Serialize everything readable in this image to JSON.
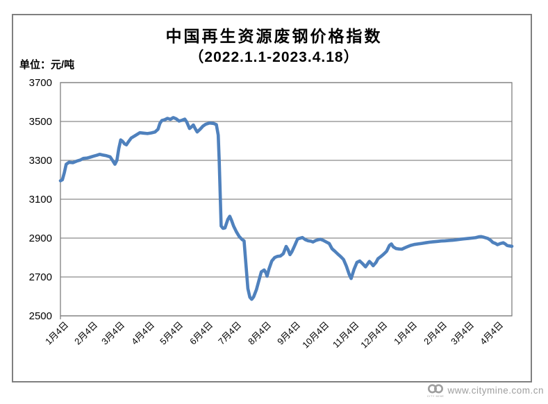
{
  "title": "中国再生资源废钢价格指数",
  "subtitle": "（2022.1.1-2023.4.18）",
  "unit_label": "单位：元/吨",
  "watermark": {
    "url_text": "www.citymine.com.cn",
    "logo_text": "CITY MINE"
  },
  "colors": {
    "line": "#4F81BD",
    "grid": "#8a8a8a",
    "plot_border": "#7f7f7f",
    "frame_border": "#7f7f7f",
    "text": "#000000",
    "watermark": "#9e9e9e"
  },
  "chart_data": {
    "type": "line",
    "series_name": "中国再生资源废钢价格指数",
    "ylabel": "元/吨",
    "ylim": [
      2500,
      3700
    ],
    "y_ticks": [
      3700,
      3500,
      3300,
      3100,
      2900,
      2700,
      2500
    ],
    "grid": true,
    "legend": "none",
    "x_unit": "days since 2022-01-01",
    "x_span_days": 472,
    "x_ticks": [
      {
        "label": "1月4日",
        "day": 3
      },
      {
        "label": "2月4日",
        "day": 34
      },
      {
        "label": "3月4日",
        "day": 62
      },
      {
        "label": "4月4日",
        "day": 93
      },
      {
        "label": "5月4日",
        "day": 123
      },
      {
        "label": "6月4日",
        "day": 154
      },
      {
        "label": "7月4日",
        "day": 184
      },
      {
        "label": "8月4日",
        "day": 215
      },
      {
        "label": "9月4日",
        "day": 246
      },
      {
        "label": "10月4日",
        "day": 276
      },
      {
        "label": "11月4日",
        "day": 307
      },
      {
        "label": "12月4日",
        "day": 337
      },
      {
        "label": "1月4日",
        "day": 368
      },
      {
        "label": "2月4日",
        "day": 399
      },
      {
        "label": "3月4日",
        "day": 427
      },
      {
        "label": "4月4日",
        "day": 458
      }
    ],
    "points": [
      [
        0,
        3195
      ],
      [
        2,
        3200
      ],
      [
        4,
        3235
      ],
      [
        6,
        3280
      ],
      [
        9,
        3290
      ],
      [
        13,
        3288
      ],
      [
        17,
        3296
      ],
      [
        21,
        3302
      ],
      [
        24,
        3310
      ],
      [
        28,
        3312
      ],
      [
        31,
        3316
      ],
      [
        35,
        3322
      ],
      [
        38,
        3326
      ],
      [
        41,
        3331
      ],
      [
        44,
        3328
      ],
      [
        48,
        3324
      ],
      [
        52,
        3318
      ],
      [
        55,
        3296
      ],
      [
        57,
        3280
      ],
      [
        59,
        3300
      ],
      [
        61,
        3360
      ],
      [
        63,
        3405
      ],
      [
        65,
        3398
      ],
      [
        67,
        3385
      ],
      [
        69,
        3380
      ],
      [
        71,
        3395
      ],
      [
        74,
        3415
      ],
      [
        79,
        3430
      ],
      [
        83,
        3442
      ],
      [
        87,
        3440
      ],
      [
        91,
        3438
      ],
      [
        95,
        3441
      ],
      [
        99,
        3446
      ],
      [
        102,
        3460
      ],
      [
        104,
        3490
      ],
      [
        106,
        3505
      ],
      [
        109,
        3509
      ],
      [
        112,
        3516
      ],
      [
        115,
        3511
      ],
      [
        118,
        3520
      ],
      [
        121,
        3514
      ],
      [
        124,
        3502
      ],
      [
        127,
        3506
      ],
      [
        130,
        3512
      ],
      [
        132,
        3498
      ],
      [
        135,
        3464
      ],
      [
        137,
        3472
      ],
      [
        139,
        3482
      ],
      [
        141,
        3462
      ],
      [
        143,
        3446
      ],
      [
        146,
        3460
      ],
      [
        149,
        3476
      ],
      [
        152,
        3486
      ],
      [
        156,
        3492
      ],
      [
        160,
        3490
      ],
      [
        163,
        3484
      ],
      [
        165,
        3430
      ],
      [
        166,
        3300
      ],
      [
        168,
        2962
      ],
      [
        170,
        2950
      ],
      [
        172,
        2952
      ],
      [
        175,
        2996
      ],
      [
        177,
        3012
      ],
      [
        179,
        2990
      ],
      [
        181,
        2962
      ],
      [
        184,
        2932
      ],
      [
        187,
        2908
      ],
      [
        190,
        2892
      ],
      [
        192,
        2886
      ],
      [
        194,
        2760
      ],
      [
        196,
        2640
      ],
      [
        198,
        2596
      ],
      [
        200,
        2585
      ],
      [
        202,
        2598
      ],
      [
        205,
        2636
      ],
      [
        208,
        2690
      ],
      [
        210,
        2726
      ],
      [
        213,
        2736
      ],
      [
        215,
        2720
      ],
      [
        216,
        2704
      ],
      [
        218,
        2740
      ],
      [
        221,
        2782
      ],
      [
        224,
        2800
      ],
      [
        227,
        2806
      ],
      [
        230,
        2808
      ],
      [
        233,
        2820
      ],
      [
        236,
        2857
      ],
      [
        238,
        2840
      ],
      [
        240,
        2815
      ],
      [
        242,
        2830
      ],
      [
        245,
        2862
      ],
      [
        248,
        2896
      ],
      [
        251,
        2900
      ],
      [
        253,
        2903
      ],
      [
        256,
        2892
      ],
      [
        259,
        2886
      ],
      [
        262,
        2884
      ],
      [
        264,
        2880
      ],
      [
        267,
        2888
      ],
      [
        270,
        2892
      ],
      [
        272,
        2894
      ],
      [
        275,
        2888
      ],
      [
        278,
        2880
      ],
      [
        281,
        2872
      ],
      [
        284,
        2845
      ],
      [
        287,
        2832
      ],
      [
        290,
        2818
      ],
      [
        293,
        2805
      ],
      [
        296,
        2790
      ],
      [
        299,
        2755
      ],
      [
        302,
        2712
      ],
      [
        304,
        2692
      ],
      [
        307,
        2740
      ],
      [
        310,
        2775
      ],
      [
        313,
        2782
      ],
      [
        316,
        2768
      ],
      [
        319,
        2752
      ],
      [
        321,
        2766
      ],
      [
        323,
        2780
      ],
      [
        325,
        2770
      ],
      [
        327,
        2758
      ],
      [
        330,
        2775
      ],
      [
        332,
        2794
      ],
      [
        335,
        2805
      ],
      [
        338,
        2818
      ],
      [
        341,
        2832
      ],
      [
        344,
        2862
      ],
      [
        346,
        2870
      ],
      [
        348,
        2855
      ],
      [
        351,
        2846
      ],
      [
        354,
        2844
      ],
      [
        357,
        2843
      ],
      [
        360,
        2850
      ],
      [
        363,
        2856
      ],
      [
        366,
        2862
      ],
      [
        370,
        2867
      ],
      [
        374,
        2870
      ],
      [
        378,
        2873
      ],
      [
        382,
        2876
      ],
      [
        386,
        2879
      ],
      [
        390,
        2881
      ],
      [
        394,
        2883
      ],
      [
        398,
        2885
      ],
      [
        402,
        2886
      ],
      [
        406,
        2888
      ],
      [
        410,
        2889
      ],
      [
        414,
        2891
      ],
      [
        418,
        2894
      ],
      [
        422,
        2896
      ],
      [
        426,
        2898
      ],
      [
        430,
        2900
      ],
      [
        434,
        2902
      ],
      [
        438,
        2907
      ],
      [
        440,
        2908
      ],
      [
        443,
        2904
      ],
      [
        447,
        2898
      ],
      [
        450,
        2888
      ],
      [
        452,
        2878
      ],
      [
        455,
        2872
      ],
      [
        457,
        2866
      ],
      [
        460,
        2872
      ],
      [
        463,
        2876
      ],
      [
        465,
        2870
      ],
      [
        467,
        2862
      ],
      [
        469,
        2860
      ],
      [
        472,
        2858
      ]
    ]
  }
}
